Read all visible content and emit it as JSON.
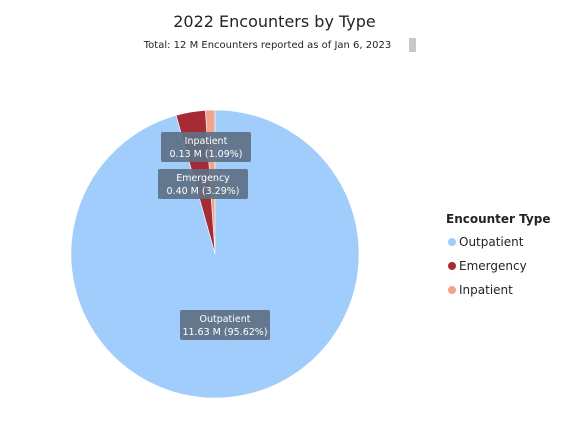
{
  "chart_data": {
    "type": "pie",
    "title": "2022 Encounters by Type",
    "subtitle": "Total: 12 M Encounters reported as of Jan 6, 2023",
    "series": [
      {
        "name": "Outpatient",
        "value": 11.63,
        "label": "11.63 M (95.62%)",
        "color": "#a0cdfb"
      },
      {
        "name": "Emergency",
        "value": 0.4,
        "label": "0.40 M (3.29%)",
        "color": "#a62b34"
      },
      {
        "name": "Inpatient",
        "value": 0.13,
        "label": "0.13 M (1.09%)",
        "color": "#f1a38b"
      }
    ],
    "legend": {
      "title": "Encounter Type",
      "position": "right"
    }
  }
}
